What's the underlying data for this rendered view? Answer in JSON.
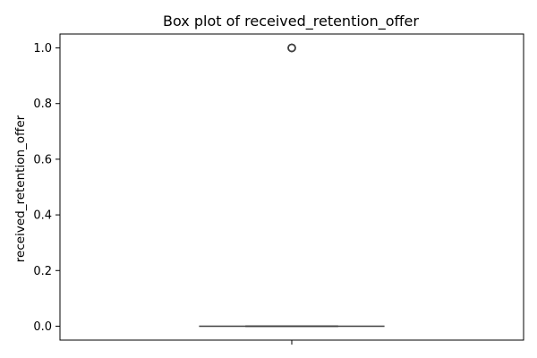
{
  "chart_data": {
    "type": "box",
    "title": "Box plot of received_retention_offer",
    "xlabel": "",
    "ylabel": "received_retention_offer",
    "ylim": [
      -0.05,
      1.05
    ],
    "yticks": [
      0.0,
      0.2,
      0.4,
      0.6,
      0.8,
      1.0
    ],
    "ytick_labels": [
      "0.0",
      "0.2",
      "0.4",
      "0.6",
      "0.8",
      "1.0"
    ],
    "grid": false,
    "box": {
      "whisker_low": 0.0,
      "q1": 0.0,
      "median": 0.0,
      "q3": 0.0,
      "whisker_high": 0.0,
      "outliers": [
        1.0,
        1.0,
        1.0,
        1.0
      ]
    },
    "colors": {
      "box_fill": "#3a75b0",
      "line": "#3f3f3f",
      "axis": "#000000"
    }
  }
}
